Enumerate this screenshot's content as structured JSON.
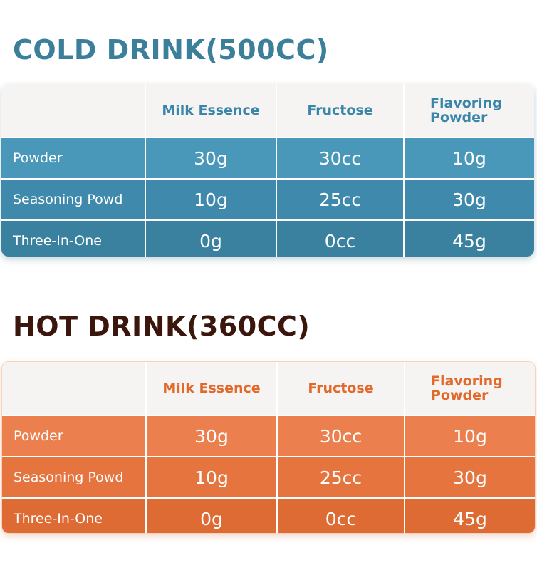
{
  "cold": {
    "title": "COLD DRINK(500CC)",
    "columns": [
      "Milk Essence",
      "Fructose",
      "Flavoring Powder"
    ],
    "rows": [
      {
        "label": "Powder",
        "values": [
          "30g",
          "30cc",
          "10g"
        ]
      },
      {
        "label": "Seasoning Powd",
        "values": [
          "10g",
          "25cc",
          "30g"
        ]
      },
      {
        "label": "Three-In-One",
        "values": [
          "0g",
          "0cc",
          "45g"
        ]
      }
    ],
    "accent_color": "#3a86ab"
  },
  "hot": {
    "title": "HOT DRINK(360CC)",
    "columns": [
      "Milk Essence",
      "Fructose",
      "Flavoring Powder"
    ],
    "rows": [
      {
        "label": "Powder",
        "values": [
          "30g",
          "30cc",
          "10g"
        ]
      },
      {
        "label": "Seasoning Powd",
        "values": [
          "10g",
          "25cc",
          "30g"
        ]
      },
      {
        "label": "Three-In-One",
        "values": [
          "0g",
          "0cc",
          "45g"
        ]
      }
    ],
    "accent_color": "#e2692c"
  }
}
